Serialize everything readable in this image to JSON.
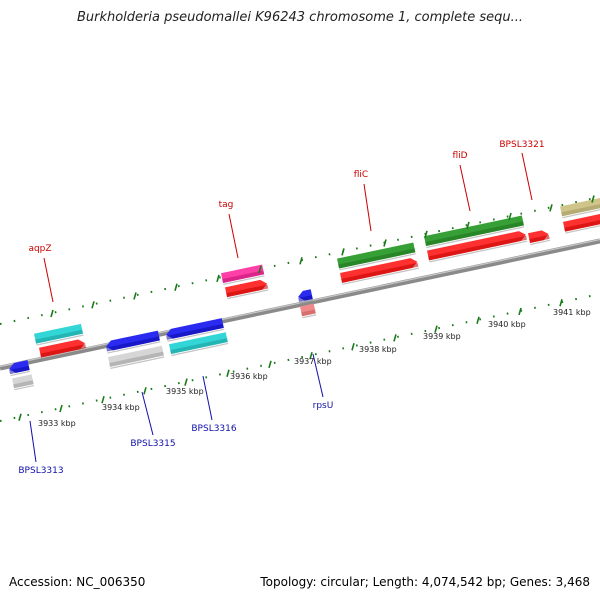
{
  "title": "Burkholderia pseudomallei K96243 chromosome 1, complete sequ...",
  "footer": {
    "accession": "Accession: NC_006350",
    "summary": "Topology: circular; Length: 4,074,542 bp; Genes: 3,468"
  },
  "colors": {
    "backbone": "#8a8a8a",
    "tick": "#1a7a1a",
    "label_forward": "#cc0000",
    "label_reverse": "#1010aa"
  },
  "scale_ticks": [
    "3933 kbp",
    "3934 kbp",
    "3935 kbp",
    "3936 kbp",
    "3937 kbp",
    "3938 kbp",
    "3939 kbp",
    "3940 kbp",
    "3941 kbp"
  ],
  "gene_labels": [
    {
      "name": "aqpZ",
      "strand": "forward"
    },
    {
      "name": "tag",
      "strand": "forward"
    },
    {
      "name": "fliC",
      "strand": "forward"
    },
    {
      "name": "fliD",
      "strand": "forward"
    },
    {
      "name": "BPSL3321",
      "strand": "forward"
    },
    {
      "name": "BPSL3313",
      "strand": "reverse"
    },
    {
      "name": "BPSL3315",
      "strand": "reverse"
    },
    {
      "name": "BPSL3316",
      "strand": "reverse"
    },
    {
      "name": "rpsU",
      "strand": "reverse"
    }
  ]
}
